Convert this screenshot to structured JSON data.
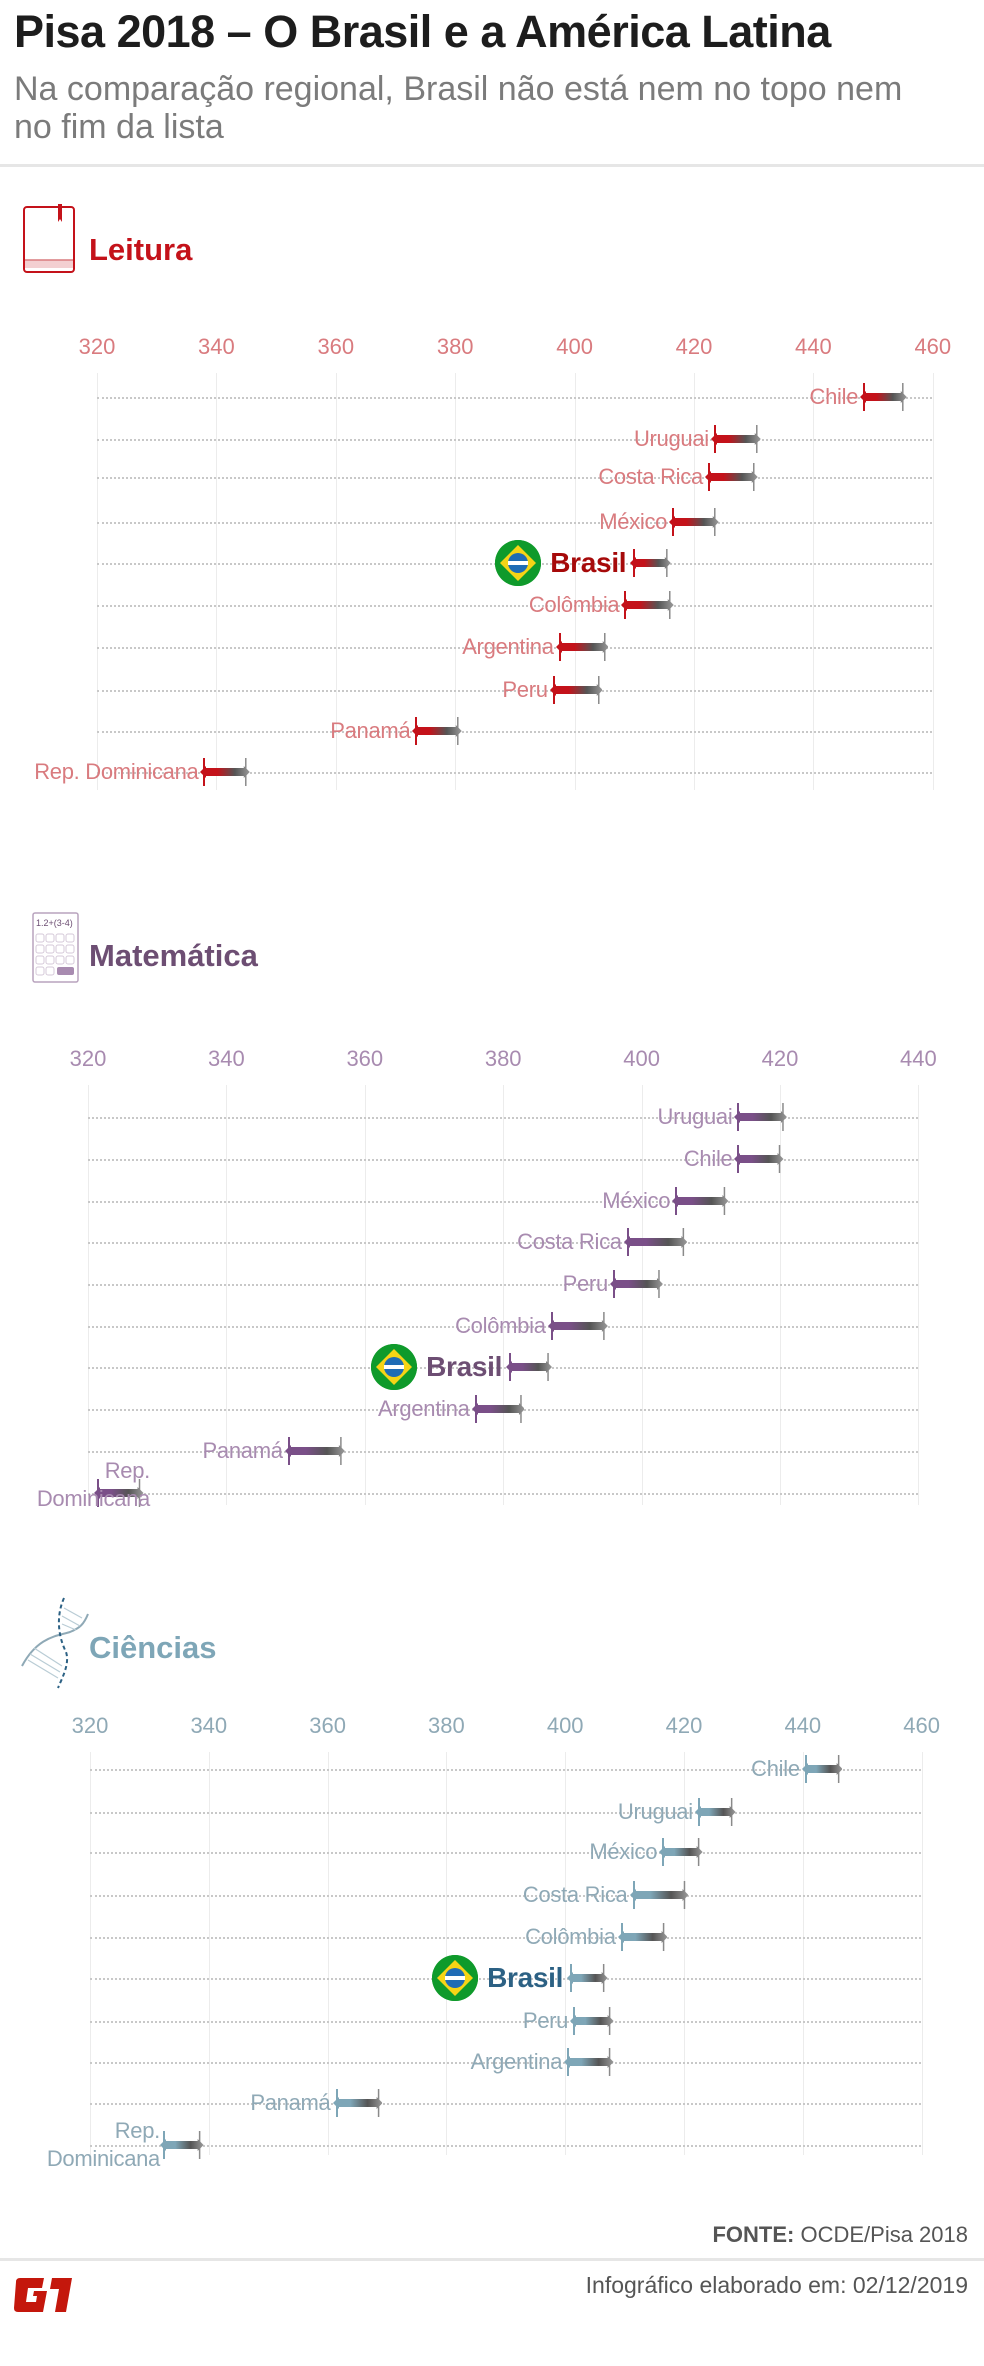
{
  "header": {
    "title": "Pisa 2018 – O Brasil e a América Latina",
    "subtitle": "Na comparação regional, Brasil não está nem no topo nem no fim da lista"
  },
  "footer": {
    "source_label": "FONTE:",
    "source_value": "OCDE/Pisa 2018",
    "date_text": "Infográfico elaborado em: 02/12/2019",
    "logo_text": "G1"
  },
  "colors": {
    "leitura": "#c4121a",
    "leitura_light": "#d97b7f",
    "leitura_brasil": "#a60a0a",
    "matematica": "#6d4e73",
    "matematica_light": "#a88bb0",
    "matematica_accent": "#7a4f88",
    "ciencias": "#7ea6b7",
    "ciencias_light": "#8fa9b6",
    "ciencias_brasil": "#2c6184",
    "logo": "#c4170c"
  },
  "chart_data": [
    {
      "type": "range-arrow",
      "title": "Leitura",
      "icon": "book-icon",
      "ticks": [
        320,
        340,
        360,
        380,
        400,
        420,
        440,
        460
      ],
      "xlim": [
        320,
        460
      ],
      "grid": true,
      "rows": [
        {
          "country": "Chile",
          "low": 448.5,
          "high": 455
        },
        {
          "country": "Uruguai",
          "low": 423.5,
          "high": 430.5
        },
        {
          "country": "Costa Rica",
          "low": 422.5,
          "high": 430
        },
        {
          "country": "México",
          "low": 416.5,
          "high": 423.5
        },
        {
          "country": "Brasil",
          "low": 410,
          "high": 415.5,
          "highlight": true
        },
        {
          "country": "Colômbia",
          "low": 408.5,
          "high": 416
        },
        {
          "country": "Argentina",
          "low": 397.5,
          "high": 405
        },
        {
          "country": "Peru",
          "low": 396.5,
          "high": 404
        },
        {
          "country": "Panamá",
          "low": 373.5,
          "high": 380.5
        },
        {
          "country": "Rep. Dominicana",
          "low": 338,
          "high": 345
        }
      ]
    },
    {
      "type": "range-arrow",
      "title": "Matemática",
      "icon": "calculator-icon",
      "icon_text": "1.2+(3-4)",
      "ticks": [
        320,
        340,
        360,
        380,
        400,
        420,
        440
      ],
      "xlim": [
        320,
        440
      ],
      "grid": true,
      "rows": [
        {
          "country": "Uruguai",
          "low": 414,
          "high": 420.5
        },
        {
          "country": "Chile",
          "low": 414,
          "high": 420
        },
        {
          "country": "México",
          "low": 405,
          "high": 412
        },
        {
          "country": "Costa Rica",
          "low": 398,
          "high": 406
        },
        {
          "country": "Peru",
          "low": 396,
          "high": 402.5
        },
        {
          "country": "Colômbia",
          "low": 387,
          "high": 394.5
        },
        {
          "country": "Brasil",
          "low": 381,
          "high": 386.5,
          "highlight": true
        },
        {
          "country": "Argentina",
          "low": 376,
          "high": 382.5
        },
        {
          "country": "Panamá",
          "low": 349,
          "high": 356.5
        },
        {
          "country": "Rep. Dominicana",
          "low": 321.5,
          "high": 327.5
        }
      ]
    },
    {
      "type": "range-arrow",
      "title": "Ciências",
      "icon": "dna-icon",
      "ticks": [
        320,
        340,
        360,
        380,
        400,
        420,
        440,
        460
      ],
      "xlim": [
        320,
        460
      ],
      "grid": true,
      "rows": [
        {
          "country": "Chile",
          "low": 440.5,
          "high": 446
        },
        {
          "country": "Uruguai",
          "low": 422.5,
          "high": 428
        },
        {
          "country": "México",
          "low": 416.5,
          "high": 422.5
        },
        {
          "country": "Costa Rica",
          "low": 411.5,
          "high": 420
        },
        {
          "country": "Colômbia",
          "low": 409.5,
          "high": 416.5
        },
        {
          "country": "Brasil",
          "low": 401,
          "high": 406.5,
          "highlight": true
        },
        {
          "country": "Peru",
          "low": 401.5,
          "high": 407.5
        },
        {
          "country": "Argentina",
          "low": 400.5,
          "high": 407.5
        },
        {
          "country": "Panamá",
          "low": 361.5,
          "high": 368.5
        },
        {
          "country": "Rep. Dominicana",
          "low": 332.5,
          "high": 338.5
        }
      ]
    }
  ]
}
